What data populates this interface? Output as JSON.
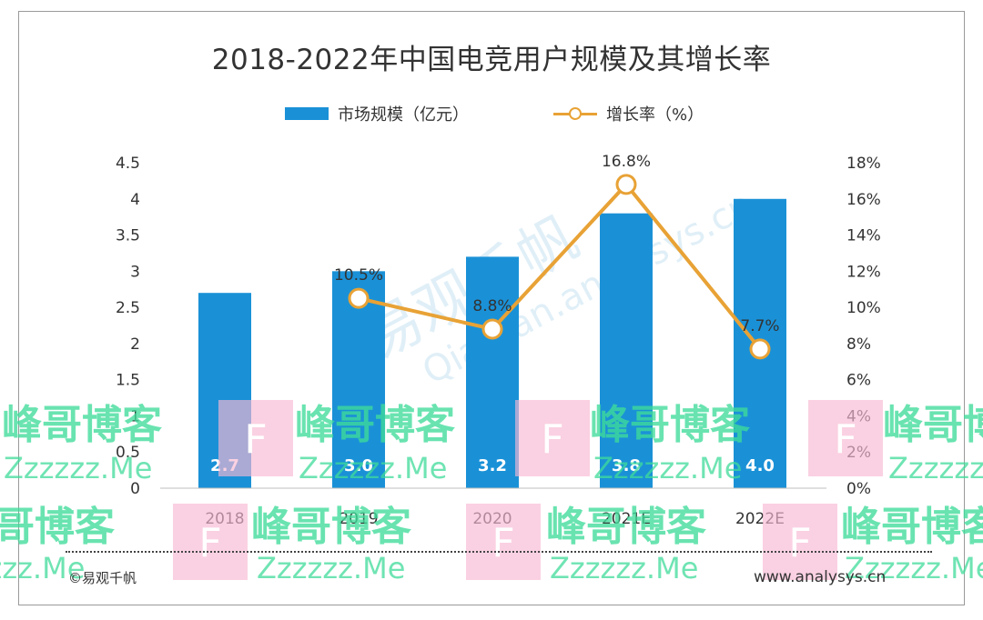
{
  "title": "2018-2022年中国电竞用户规模及其增长率",
  "legend": {
    "bar": "市场规模（亿元）",
    "line": "增长率（%）"
  },
  "colors": {
    "bar": "#1a91d7",
    "line": "#e8a235",
    "text": "#333333",
    "watermark_green": "#3fdc9a",
    "watermark_pink": "#f7b8d2"
  },
  "chart_data": {
    "type": "bar",
    "title": "2018-2022年中国电竞用户规模及其增长率",
    "categories": [
      "2018",
      "2019",
      "2020",
      "2021E",
      "2022E"
    ],
    "series": [
      {
        "name": "市场规模（亿元）",
        "type": "bar",
        "axis": "left",
        "values": [
          2.7,
          3.0,
          3.2,
          3.8,
          4.0
        ],
        "labels": [
          "2.7",
          "3.0",
          "3.2",
          "3.8",
          "4.0"
        ]
      },
      {
        "name": "增长率（%）",
        "type": "line",
        "axis": "right",
        "values": [
          null,
          10.5,
          8.8,
          16.8,
          7.7
        ],
        "labels": [
          "",
          "10.5%",
          "8.8%",
          "16.8%",
          "7.7%"
        ]
      }
    ],
    "y_left": {
      "range": [
        0,
        4.5
      ],
      "ticks": [
        "0",
        "0.5",
        "1",
        "1.5",
        "2",
        "2.5",
        "3",
        "3.5",
        "4",
        "4.5"
      ]
    },
    "y_right": {
      "range": [
        0,
        18
      ],
      "ticks": [
        "0%",
        "2%",
        "4%",
        "6%",
        "8%",
        "10%",
        "12%",
        "14%",
        "16%",
        "18%"
      ]
    },
    "legend_position": "top-center",
    "grid": false
  },
  "footer": {
    "source": "©易观千帆",
    "site": "www.analysys.cn"
  },
  "watermarks": {
    "logo_text": "易观千帆",
    "logo_url": "Qianfan.analysys.cn",
    "blog_cn": "峰哥博客",
    "blog_en": "Zzzzzz.Me",
    "blog_letter": "F"
  }
}
